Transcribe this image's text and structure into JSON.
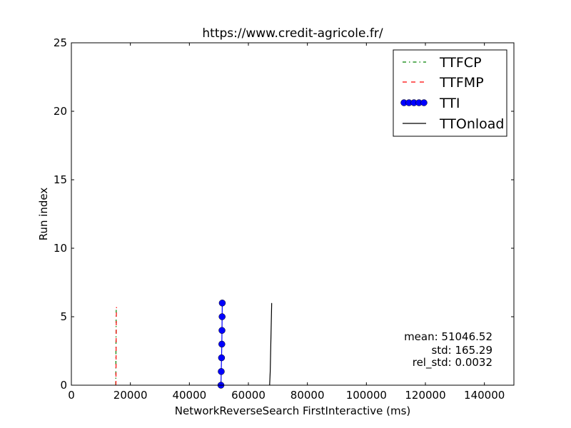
{
  "chart_data": {
    "type": "line",
    "title": "https://www.credit-agricole.fr/",
    "xlabel": "NetworkReverseSearch FirstInteractive (ms)",
    "ylabel": "Run index",
    "xlim": [
      0,
      150000
    ],
    "ylim": [
      0,
      25
    ],
    "xticks": [
      0,
      20000,
      40000,
      60000,
      80000,
      100000,
      120000,
      140000
    ],
    "xtick_labels": [
      "0",
      "20000",
      "40000",
      "60000",
      "80000",
      "100000",
      "120000",
      "140000"
    ],
    "yticks": [
      0,
      5,
      10,
      15,
      20,
      25
    ],
    "ytick_labels": [
      "0",
      "5",
      "10",
      "15",
      "20",
      "25"
    ],
    "grid": false,
    "legend_position": "top-right",
    "series": [
      {
        "name": "TTFCP",
        "color": "#008000",
        "style": "dashdot",
        "x": [
          15050,
          15080,
          15100,
          15120,
          15150,
          15170,
          15200
        ],
        "y": [
          0,
          1,
          2,
          3,
          4,
          5,
          5.5
        ]
      },
      {
        "name": "TTFMP",
        "color": "#ff0000",
        "style": "dashed",
        "x": [
          15100,
          15130,
          15150,
          15170,
          15200,
          15230,
          15300
        ],
        "y": [
          0,
          1,
          2,
          3,
          4,
          5,
          5.7
        ]
      },
      {
        "name": "TTI",
        "color": "#0000ff",
        "style": "solid-markers",
        "x": [
          50700,
          50800,
          50900,
          51000,
          51050,
          51100,
          51150
        ],
        "y": [
          0,
          1,
          2,
          3,
          4,
          5,
          6
        ]
      },
      {
        "name": "TTOnload",
        "color": "#000000",
        "style": "solid",
        "x": [
          67200,
          67400,
          67500,
          67600,
          67700,
          67800,
          67900
        ],
        "y": [
          0,
          1,
          2,
          3,
          4,
          5,
          6
        ]
      }
    ],
    "annotations": {
      "mean": "mean: 51046.52",
      "std": "std: 165.29",
      "rel_std": "rel_std: 0.0032"
    }
  }
}
